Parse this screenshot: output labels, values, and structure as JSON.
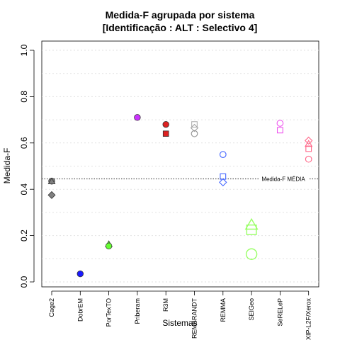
{
  "chart_data": {
    "type": "scatter",
    "title": "Medida-F agrupada por sistema",
    "subtitle": "[Identificação : ALT : Selectivo 4]",
    "xlabel": "Sistemas",
    "ylabel": "Medida-F",
    "ylim": [
      0,
      1
    ],
    "yticks": [
      "0.0",
      "0.2",
      "0.4",
      "0.6",
      "0.8",
      "1.0"
    ],
    "grid": true,
    "categories": [
      "Cage2",
      "DobrEM",
      "PorTexTO",
      "Priberam",
      "R3M",
      "REMBRANDT",
      "REMMA",
      "SEIGeo",
      "SeRELeP",
      "XIP-L2F/Xerox"
    ],
    "reference_line": {
      "label": "Medida-F MÉDIA",
      "value": 0.445
    },
    "points": [
      {
        "category": "Cage2",
        "value": 0.435,
        "shape": "circle",
        "color": "#808080",
        "filled": true,
        "size": "small"
      },
      {
        "category": "Cage2",
        "value": 0.433,
        "shape": "triangle",
        "color": "#808080",
        "filled": true,
        "size": "small"
      },
      {
        "category": "Cage2",
        "value": 0.375,
        "shape": "diamond",
        "color": "#808080",
        "filled": true,
        "size": "small"
      },
      {
        "category": "DobrEM",
        "value": 0.035,
        "shape": "circle",
        "color": "#1a1aff",
        "filled": true,
        "size": "small"
      },
      {
        "category": "PorTexTO",
        "value": 0.162,
        "shape": "triangle",
        "color": "#66ff33",
        "filled": true,
        "size": "small"
      },
      {
        "category": "PorTexTO",
        "value": 0.155,
        "shape": "circle",
        "color": "#66ff33",
        "filled": true,
        "size": "small"
      },
      {
        "category": "Priberam",
        "value": 0.71,
        "shape": "circle",
        "color": "#cc33ff",
        "filled": true,
        "size": "small"
      },
      {
        "category": "R3M",
        "value": 0.68,
        "shape": "circle",
        "color": "#dd2222",
        "filled": true,
        "size": "small"
      },
      {
        "category": "R3M",
        "value": 0.64,
        "shape": "square",
        "color": "#dd2222",
        "filled": true,
        "size": "small"
      },
      {
        "category": "REMBRANDT",
        "value": 0.68,
        "shape": "square",
        "color": "#b0b0b0",
        "filled": false,
        "size": "small"
      },
      {
        "category": "REMBRANDT",
        "value": 0.665,
        "shape": "diamond",
        "color": "#a0a0a0",
        "filled": false,
        "size": "small"
      },
      {
        "category": "REMBRANDT",
        "value": 0.64,
        "shape": "circle",
        "color": "#909090",
        "filled": false,
        "size": "small"
      },
      {
        "category": "REMMA",
        "value": 0.55,
        "shape": "circle",
        "color": "#4466ff",
        "filled": false,
        "size": "small"
      },
      {
        "category": "REMMA",
        "value": 0.455,
        "shape": "square",
        "color": "#4466ff",
        "filled": false,
        "size": "small"
      },
      {
        "category": "REMMA",
        "value": 0.43,
        "shape": "diamond",
        "color": "#4466ff",
        "filled": false,
        "size": "small"
      },
      {
        "category": "SEIGeo",
        "value": 0.245,
        "shape": "triangle",
        "color": "#99ff66",
        "filled": false,
        "size": "large"
      },
      {
        "category": "SEIGeo",
        "value": 0.225,
        "shape": "square",
        "color": "#99ff66",
        "filled": false,
        "size": "large"
      },
      {
        "category": "SEIGeo",
        "value": 0.12,
        "shape": "circle",
        "color": "#99ff66",
        "filled": false,
        "size": "large"
      },
      {
        "category": "SeRELeP",
        "value": 0.685,
        "shape": "circle",
        "color": "#ee55ee",
        "filled": false,
        "size": "small"
      },
      {
        "category": "SeRELeP",
        "value": 0.655,
        "shape": "square",
        "color": "#ee55ee",
        "filled": false,
        "size": "small"
      },
      {
        "category": "XIP-L2F/Xerox",
        "value": 0.61,
        "shape": "diamond",
        "color": "#ff6688",
        "filled": false,
        "size": "small"
      },
      {
        "category": "XIP-L2F/Xerox",
        "value": 0.595,
        "shape": "triangle",
        "color": "#ff6688",
        "filled": false,
        "size": "small"
      },
      {
        "category": "XIP-L2F/Xerox",
        "value": 0.575,
        "shape": "square",
        "color": "#ff6688",
        "filled": false,
        "size": "small"
      },
      {
        "category": "XIP-L2F/Xerox",
        "value": 0.53,
        "shape": "circle",
        "color": "#ff6688",
        "filled": false,
        "size": "small"
      }
    ]
  }
}
